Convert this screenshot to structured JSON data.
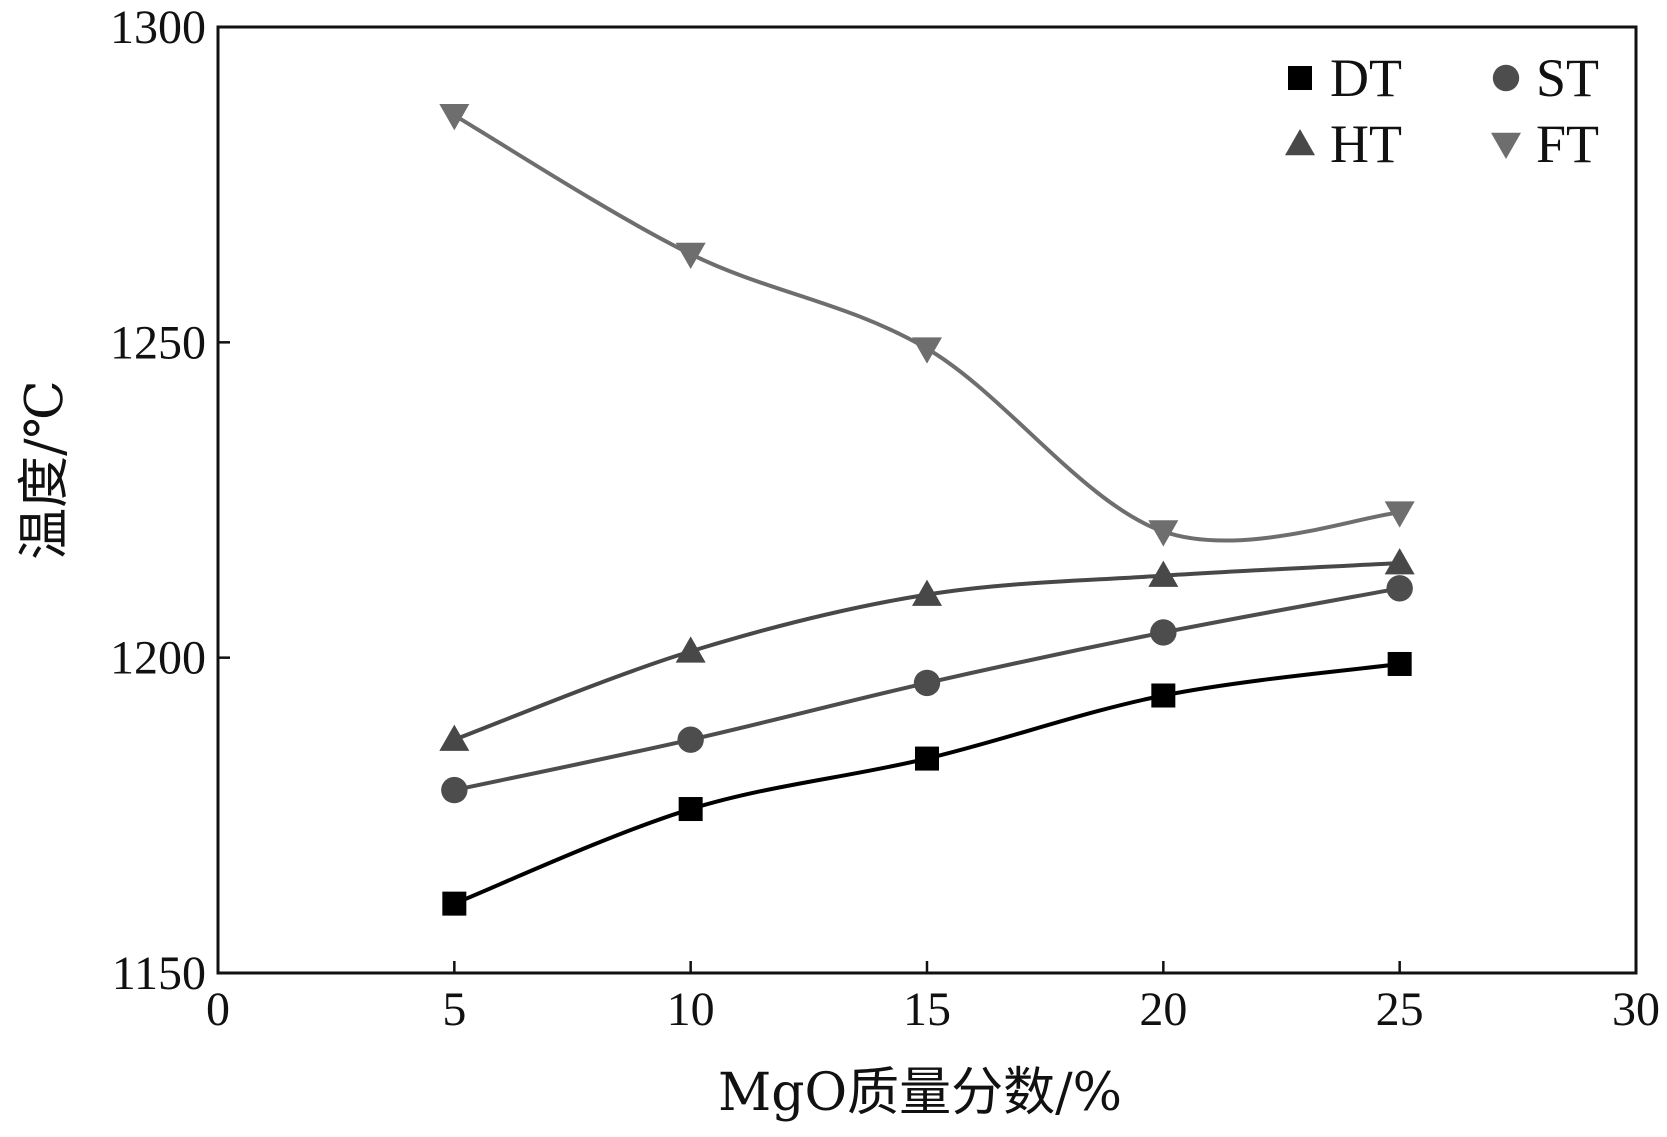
{
  "chart_data": {
    "type": "line",
    "xlabel": "MgO质量分数/%",
    "ylabel": "温度/℃",
    "xlim": [
      0,
      30
    ],
    "ylim": [
      1150,
      1300
    ],
    "xticks": [
      0,
      5,
      10,
      15,
      20,
      25,
      30
    ],
    "yticks": [
      1150,
      1200,
      1250,
      1300
    ],
    "grid": false,
    "legend_position": "top-right",
    "x": [
      5,
      10,
      15,
      20,
      25
    ],
    "series": [
      {
        "name": "DT",
        "marker": "square",
        "color": "#000000",
        "values": [
          1161,
          1176,
          1184,
          1194,
          1199
        ]
      },
      {
        "name": "ST",
        "marker": "circle",
        "color": "#4d4d4d",
        "values": [
          1179,
          1187,
          1196,
          1204,
          1211
        ]
      },
      {
        "name": "HT",
        "marker": "triangle-up",
        "color": "#484848",
        "values": [
          1187,
          1201,
          1210,
          1213,
          1215
        ]
      },
      {
        "name": "FT",
        "marker": "triangle-down",
        "color": "#6e6e6e",
        "values": [
          1286,
          1264,
          1249,
          1220,
          1223
        ]
      }
    ]
  }
}
